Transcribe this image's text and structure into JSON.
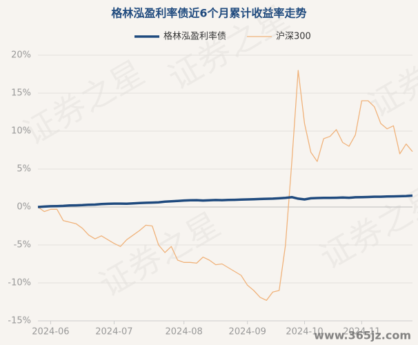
{
  "chart_data": {
    "type": "line",
    "title": "格林泓盈利率债近6个月累计收益率走势",
    "categories": [
      null,
      null,
      "2024-06",
      null,
      null,
      null,
      null,
      null,
      null,
      null,
      null,
      null,
      "2024-07",
      null,
      null,
      null,
      null,
      null,
      null,
      null,
      null,
      null,
      null,
      "2024-08",
      null,
      null,
      null,
      null,
      null,
      null,
      null,
      null,
      null,
      "2024-09",
      null,
      null,
      null,
      null,
      null,
      null,
      null,
      null,
      "2024-10",
      null,
      null,
      null,
      null,
      null,
      null,
      null,
      null,
      "2024-11",
      null,
      null,
      null,
      null,
      null,
      null,
      null,
      null
    ],
    "series": [
      {
        "name": "格林泓盈利率债",
        "color": "#1f4a7e",
        "width": 3.5,
        "values": [
          0,
          0.05,
          0.1,
          0.12,
          0.15,
          0.2,
          0.22,
          0.25,
          0.3,
          0.32,
          0.38,
          0.42,
          0.45,
          0.45,
          0.43,
          0.48,
          0.52,
          0.55,
          0.58,
          0.62,
          0.7,
          0.75,
          0.8,
          0.85,
          0.88,
          0.9,
          0.85,
          0.88,
          0.92,
          0.9,
          0.93,
          0.95,
          0.98,
          1.0,
          1.02,
          1.05,
          1.08,
          1.1,
          1.15,
          1.2,
          1.3,
          1.1,
          1.0,
          1.15,
          1.18,
          1.2,
          1.2,
          1.22,
          1.25,
          1.22,
          1.28,
          1.3,
          1.32,
          1.35,
          1.35,
          1.38,
          1.4,
          1.42,
          1.45,
          1.5
        ]
      },
      {
        "name": "沪深300",
        "color": "#f0b27a",
        "width": 1.3,
        "values": [
          0,
          -0.6,
          -0.3,
          -0.3,
          -1.8,
          -2,
          -2.2,
          -2.8,
          -3.7,
          -4.2,
          -3.8,
          -4.3,
          -4.8,
          -5.2,
          -4.3,
          -3.7,
          -3.1,
          -2.4,
          -2.5,
          -5,
          -6,
          -5.2,
          -7,
          -7.3,
          -7.3,
          -7.4,
          -6.6,
          -7,
          -7.6,
          -7.5,
          -8,
          -8.5,
          -9,
          -10.3,
          -11,
          -11.9,
          -12.3,
          -11.2,
          -11,
          -5,
          6,
          18,
          11,
          7.2,
          6,
          9,
          9.3,
          10.2,
          8.5,
          8,
          9.5,
          14,
          14,
          13.2,
          11,
          10.3,
          10.7,
          7,
          8.3,
          7.3
        ]
      }
    ],
    "ylim": [
      -15,
      20
    ],
    "yticks": [
      {
        "value": -15,
        "label": "-15%"
      },
      {
        "value": -10,
        "label": "-10%"
      },
      {
        "value": -5,
        "label": "-5%"
      },
      {
        "value": 0,
        "label": "0%"
      },
      {
        "value": 5,
        "label": "5%"
      },
      {
        "value": 10,
        "label": "10%"
      },
      {
        "value": 15,
        "label": "15%"
      },
      {
        "value": 20,
        "label": "20%"
      }
    ],
    "grid": true,
    "legend": "top",
    "watermark": "证券之星",
    "site": "www.365jz.com"
  }
}
